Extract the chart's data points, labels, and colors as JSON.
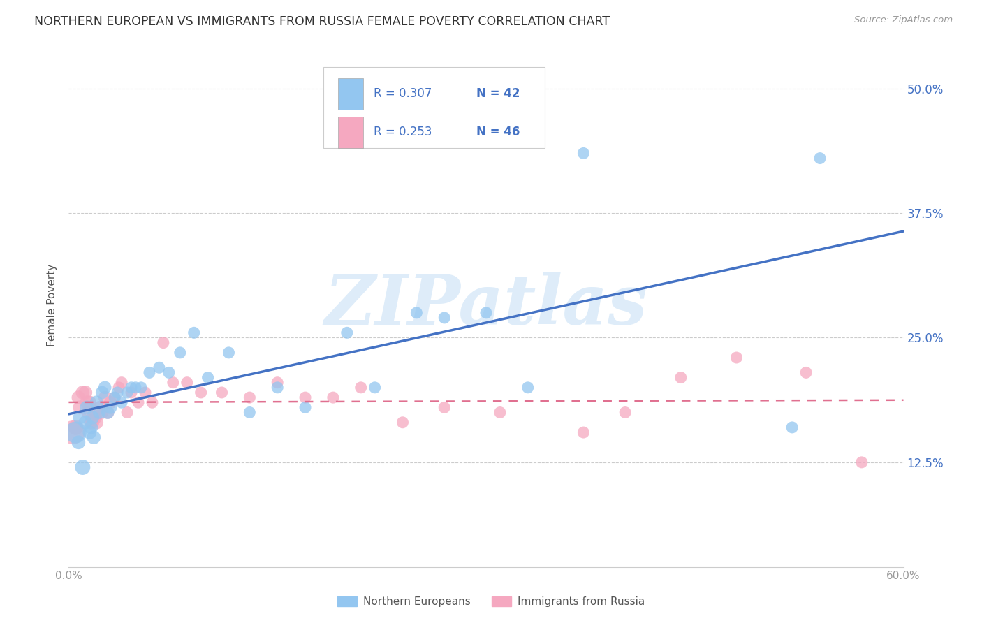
{
  "title": "NORTHERN EUROPEAN VS IMMIGRANTS FROM RUSSIA FEMALE POVERTY CORRELATION CHART",
  "source": "Source: ZipAtlas.com",
  "ylabel": "Female Poverty",
  "ytick_labels": [
    "12.5%",
    "25.0%",
    "37.5%",
    "50.0%"
  ],
  "ytick_values": [
    0.125,
    0.25,
    0.375,
    0.5
  ],
  "xtick_labels": [
    "0.0%",
    "60.0%"
  ],
  "xtick_positions": [
    0.0,
    0.6
  ],
  "xmin": 0.0,
  "xmax": 0.6,
  "ymin": 0.02,
  "ymax": 0.545,
  "blue_R": 0.307,
  "blue_N": 42,
  "pink_R": 0.253,
  "pink_N": 46,
  "blue_color": "#93C6F0",
  "pink_color": "#F5A8C0",
  "blue_line_color": "#4472C4",
  "pink_line_color": "#E07090",
  "watermark_text": "ZIPatlas",
  "watermark_color": "#C8E0F5",
  "legend_label_blue": "Northern Europeans",
  "legend_label_pink": "Immigrants from Russia",
  "blue_x": [
    0.005,
    0.007,
    0.008,
    0.01,
    0.012,
    0.013,
    0.015,
    0.016,
    0.017,
    0.018,
    0.02,
    0.022,
    0.024,
    0.026,
    0.028,
    0.03,
    0.033,
    0.035,
    0.038,
    0.042,
    0.045,
    0.048,
    0.052,
    0.058,
    0.065,
    0.072,
    0.08,
    0.09,
    0.1,
    0.115,
    0.13,
    0.15,
    0.17,
    0.2,
    0.22,
    0.25,
    0.27,
    0.3,
    0.33,
    0.37,
    0.52,
    0.54
  ],
  "blue_y": [
    0.155,
    0.145,
    0.17,
    0.12,
    0.165,
    0.18,
    0.155,
    0.16,
    0.17,
    0.15,
    0.185,
    0.175,
    0.195,
    0.2,
    0.175,
    0.18,
    0.19,
    0.195,
    0.185,
    0.195,
    0.2,
    0.2,
    0.2,
    0.215,
    0.22,
    0.215,
    0.235,
    0.255,
    0.21,
    0.235,
    0.175,
    0.2,
    0.18,
    0.255,
    0.2,
    0.275,
    0.27,
    0.275,
    0.2,
    0.435,
    0.16,
    0.43
  ],
  "blue_sizes": [
    500,
    200,
    200,
    250,
    200,
    200,
    200,
    200,
    200,
    200,
    200,
    180,
    180,
    180,
    180,
    180,
    150,
    150,
    150,
    150,
    150,
    150,
    150,
    150,
    150,
    150,
    150,
    150,
    150,
    150,
    150,
    150,
    150,
    150,
    150,
    150,
    150,
    150,
    150,
    150,
    150,
    150
  ],
  "pink_x": [
    0.003,
    0.005,
    0.007,
    0.008,
    0.01,
    0.012,
    0.013,
    0.014,
    0.015,
    0.016,
    0.017,
    0.018,
    0.019,
    0.02,
    0.022,
    0.024,
    0.026,
    0.028,
    0.03,
    0.033,
    0.036,
    0.038,
    0.042,
    0.045,
    0.05,
    0.055,
    0.06,
    0.068,
    0.075,
    0.085,
    0.095,
    0.11,
    0.13,
    0.15,
    0.17,
    0.19,
    0.21,
    0.24,
    0.27,
    0.31,
    0.37,
    0.4,
    0.44,
    0.48,
    0.53,
    0.57
  ],
  "pink_y": [
    0.155,
    0.16,
    0.19,
    0.18,
    0.195,
    0.195,
    0.185,
    0.175,
    0.185,
    0.165,
    0.165,
    0.17,
    0.17,
    0.165,
    0.18,
    0.175,
    0.19,
    0.175,
    0.185,
    0.19,
    0.2,
    0.205,
    0.175,
    0.195,
    0.185,
    0.195,
    0.185,
    0.245,
    0.205,
    0.205,
    0.195,
    0.195,
    0.19,
    0.205,
    0.19,
    0.19,
    0.2,
    0.165,
    0.18,
    0.175,
    0.155,
    0.175,
    0.21,
    0.23,
    0.215,
    0.125
  ],
  "pink_sizes": [
    600,
    250,
    200,
    200,
    200,
    200,
    200,
    200,
    200,
    200,
    200,
    200,
    200,
    200,
    180,
    180,
    180,
    180,
    180,
    150,
    150,
    150,
    150,
    150,
    150,
    150,
    150,
    150,
    150,
    150,
    150,
    150,
    150,
    150,
    150,
    150,
    150,
    150,
    150,
    150,
    150,
    150,
    150,
    150,
    150,
    150
  ]
}
